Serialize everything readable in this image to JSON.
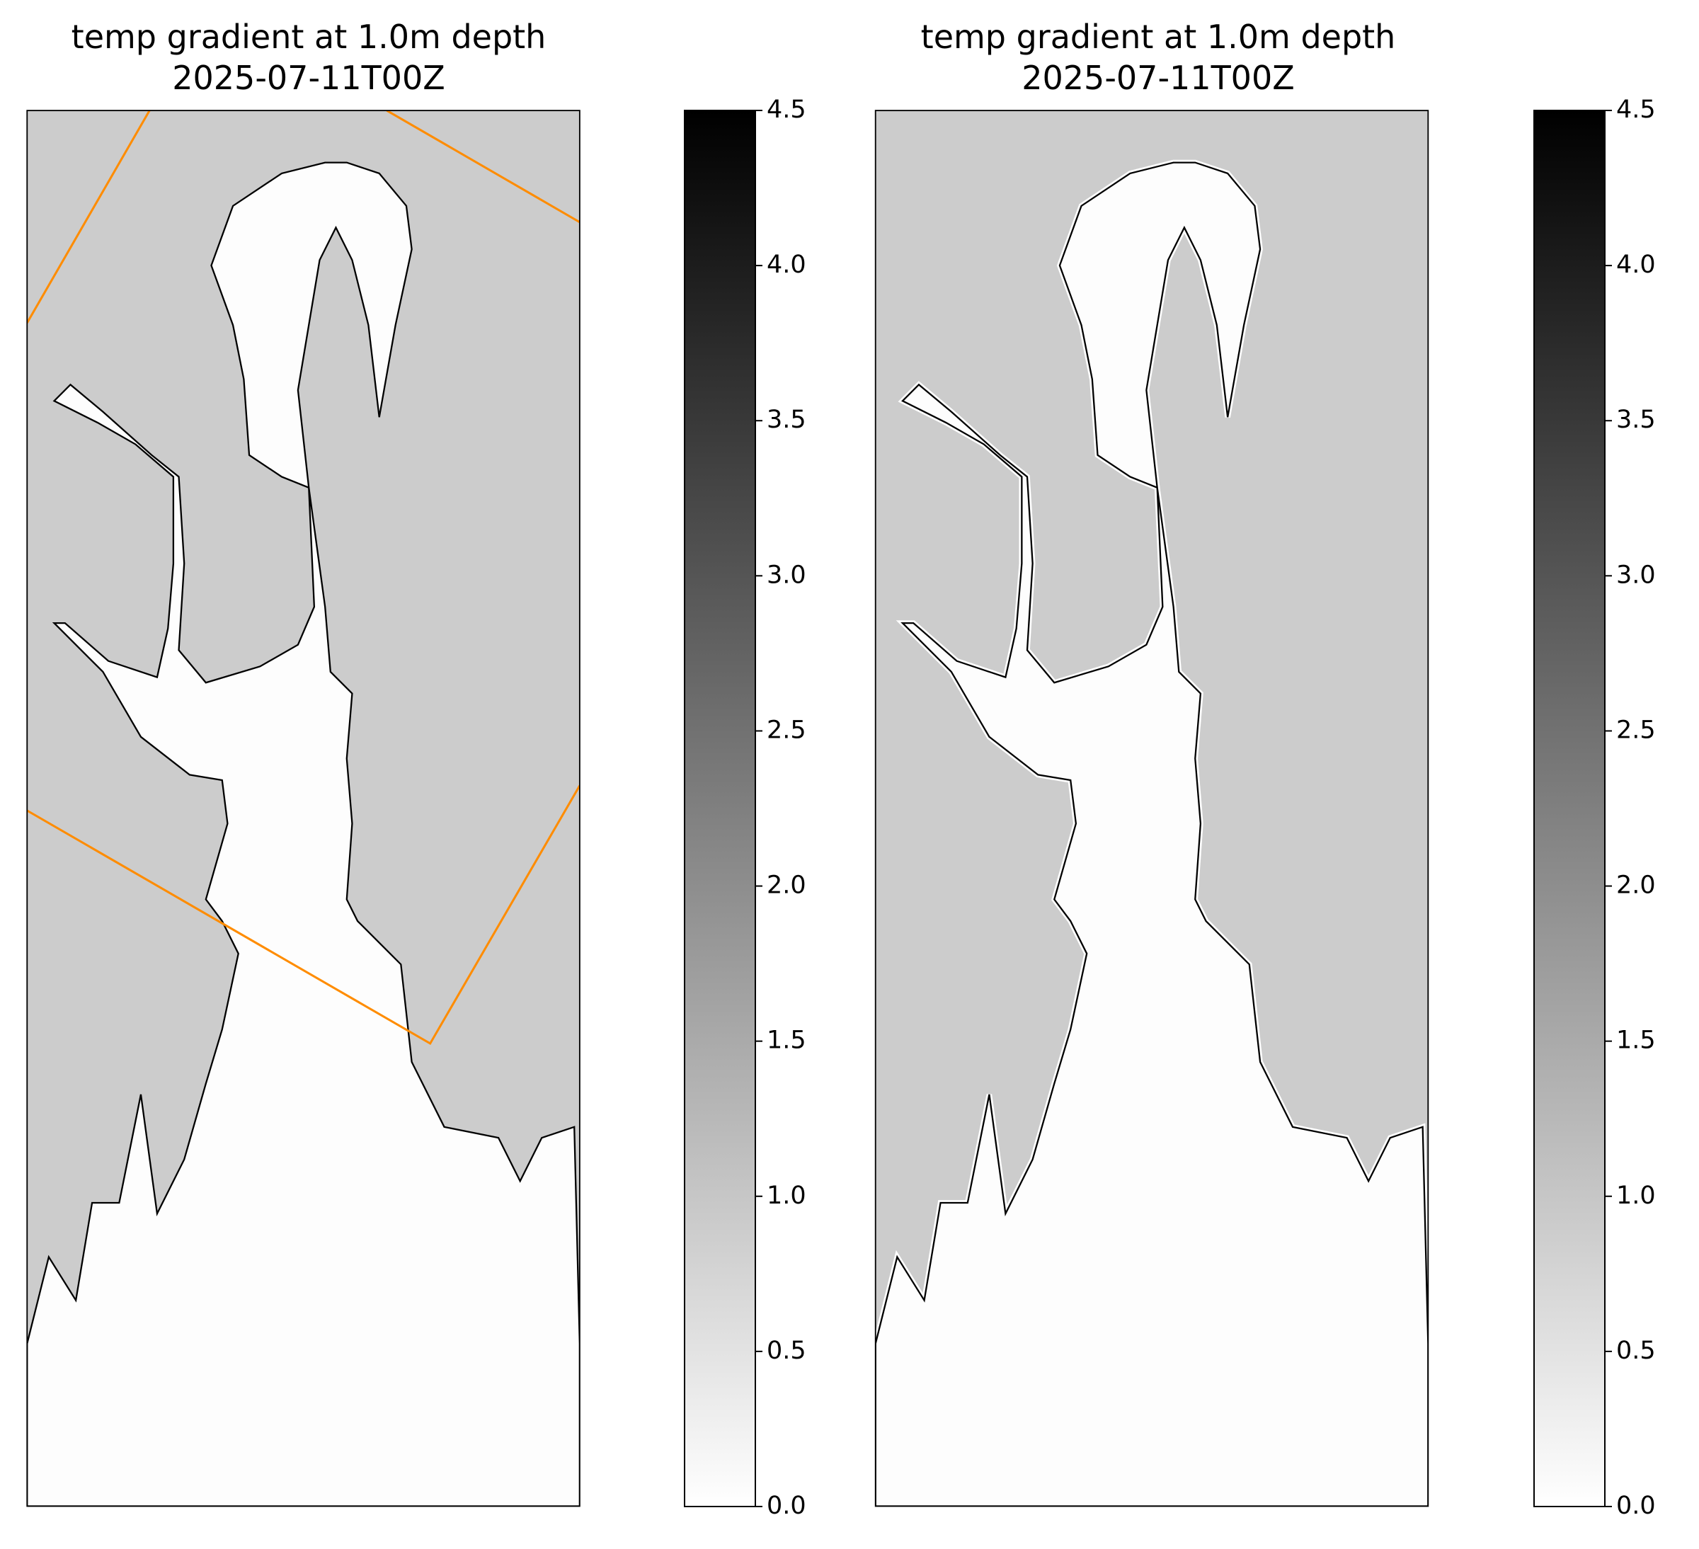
{
  "chart_data": [
    {
      "type": "map",
      "title": "temp gradient at 1.0m depth",
      "subtitle": "2025-07-11T00Z",
      "colormap": [
        "#ffffff",
        "#000000"
      ],
      "clim": [
        0,
        4.5
      ],
      "cticks": [
        {
          "value": 0,
          "label": "0.0"
        },
        0.5,
        {
          "value": 1,
          "label": "1.0"
        },
        1.5,
        {
          "value": 2,
          "label": "2.0"
        },
        2.5,
        {
          "value": 3,
          "label": "3.0"
        },
        3.5,
        {
          "value": 4,
          "label": "4.0"
        },
        4.5
      ]
    },
    {
      "type": "map",
      "title": "temp gradient at 1.0m depth",
      "subtitle": "2025-07-11T00Z",
      "colormap": [
        "#ffffff",
        "#000000"
      ],
      "clim": [
        0,
        4.5
      ],
      "cticks": [
        {
          "value": 0,
          "label": "0.0"
        },
        0.5,
        {
          "value": 1,
          "label": "1.0"
        },
        1.5,
        {
          "value": 2,
          "label": "2.0"
        },
        2.5,
        {
          "value": 3,
          "label": "3.0"
        },
        3.5,
        {
          "value": 4,
          "label": "4.0"
        },
        4.5
      ]
    }
  ]
}
